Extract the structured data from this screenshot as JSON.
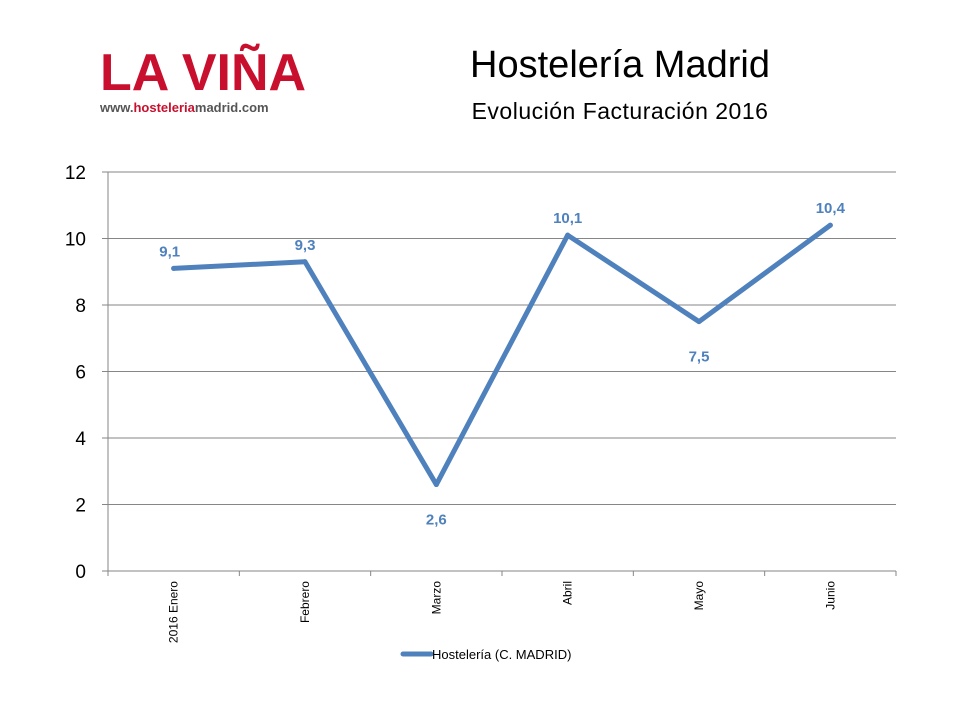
{
  "logo": {
    "brand": "LA VIÑA",
    "url_prefix": "www.",
    "url_highlight": "hosteleria",
    "url_suffix": "madrid.com"
  },
  "chart_data": {
    "type": "line",
    "title": "Hostelería Madrid",
    "subtitle": "Evolución Facturación 2016",
    "categories": [
      "2016 Enero",
      "Febrero",
      "Marzo",
      "Abril",
      "Mayo",
      "Junio"
    ],
    "series": [
      {
        "name": "Hostelería (C. MADRID)",
        "values": [
          9.1,
          9.3,
          2.6,
          10.1,
          7.5,
          10.4
        ],
        "labels": [
          "9,1",
          "9,3",
          "2,6",
          "10,1",
          "7,5",
          "10,4"
        ],
        "color": "#4f81bd"
      }
    ],
    "ylim": [
      0,
      12
    ],
    "yticks": [
      0,
      2,
      4,
      6,
      8,
      10,
      12
    ],
    "grid": true,
    "legend": "bottom"
  }
}
